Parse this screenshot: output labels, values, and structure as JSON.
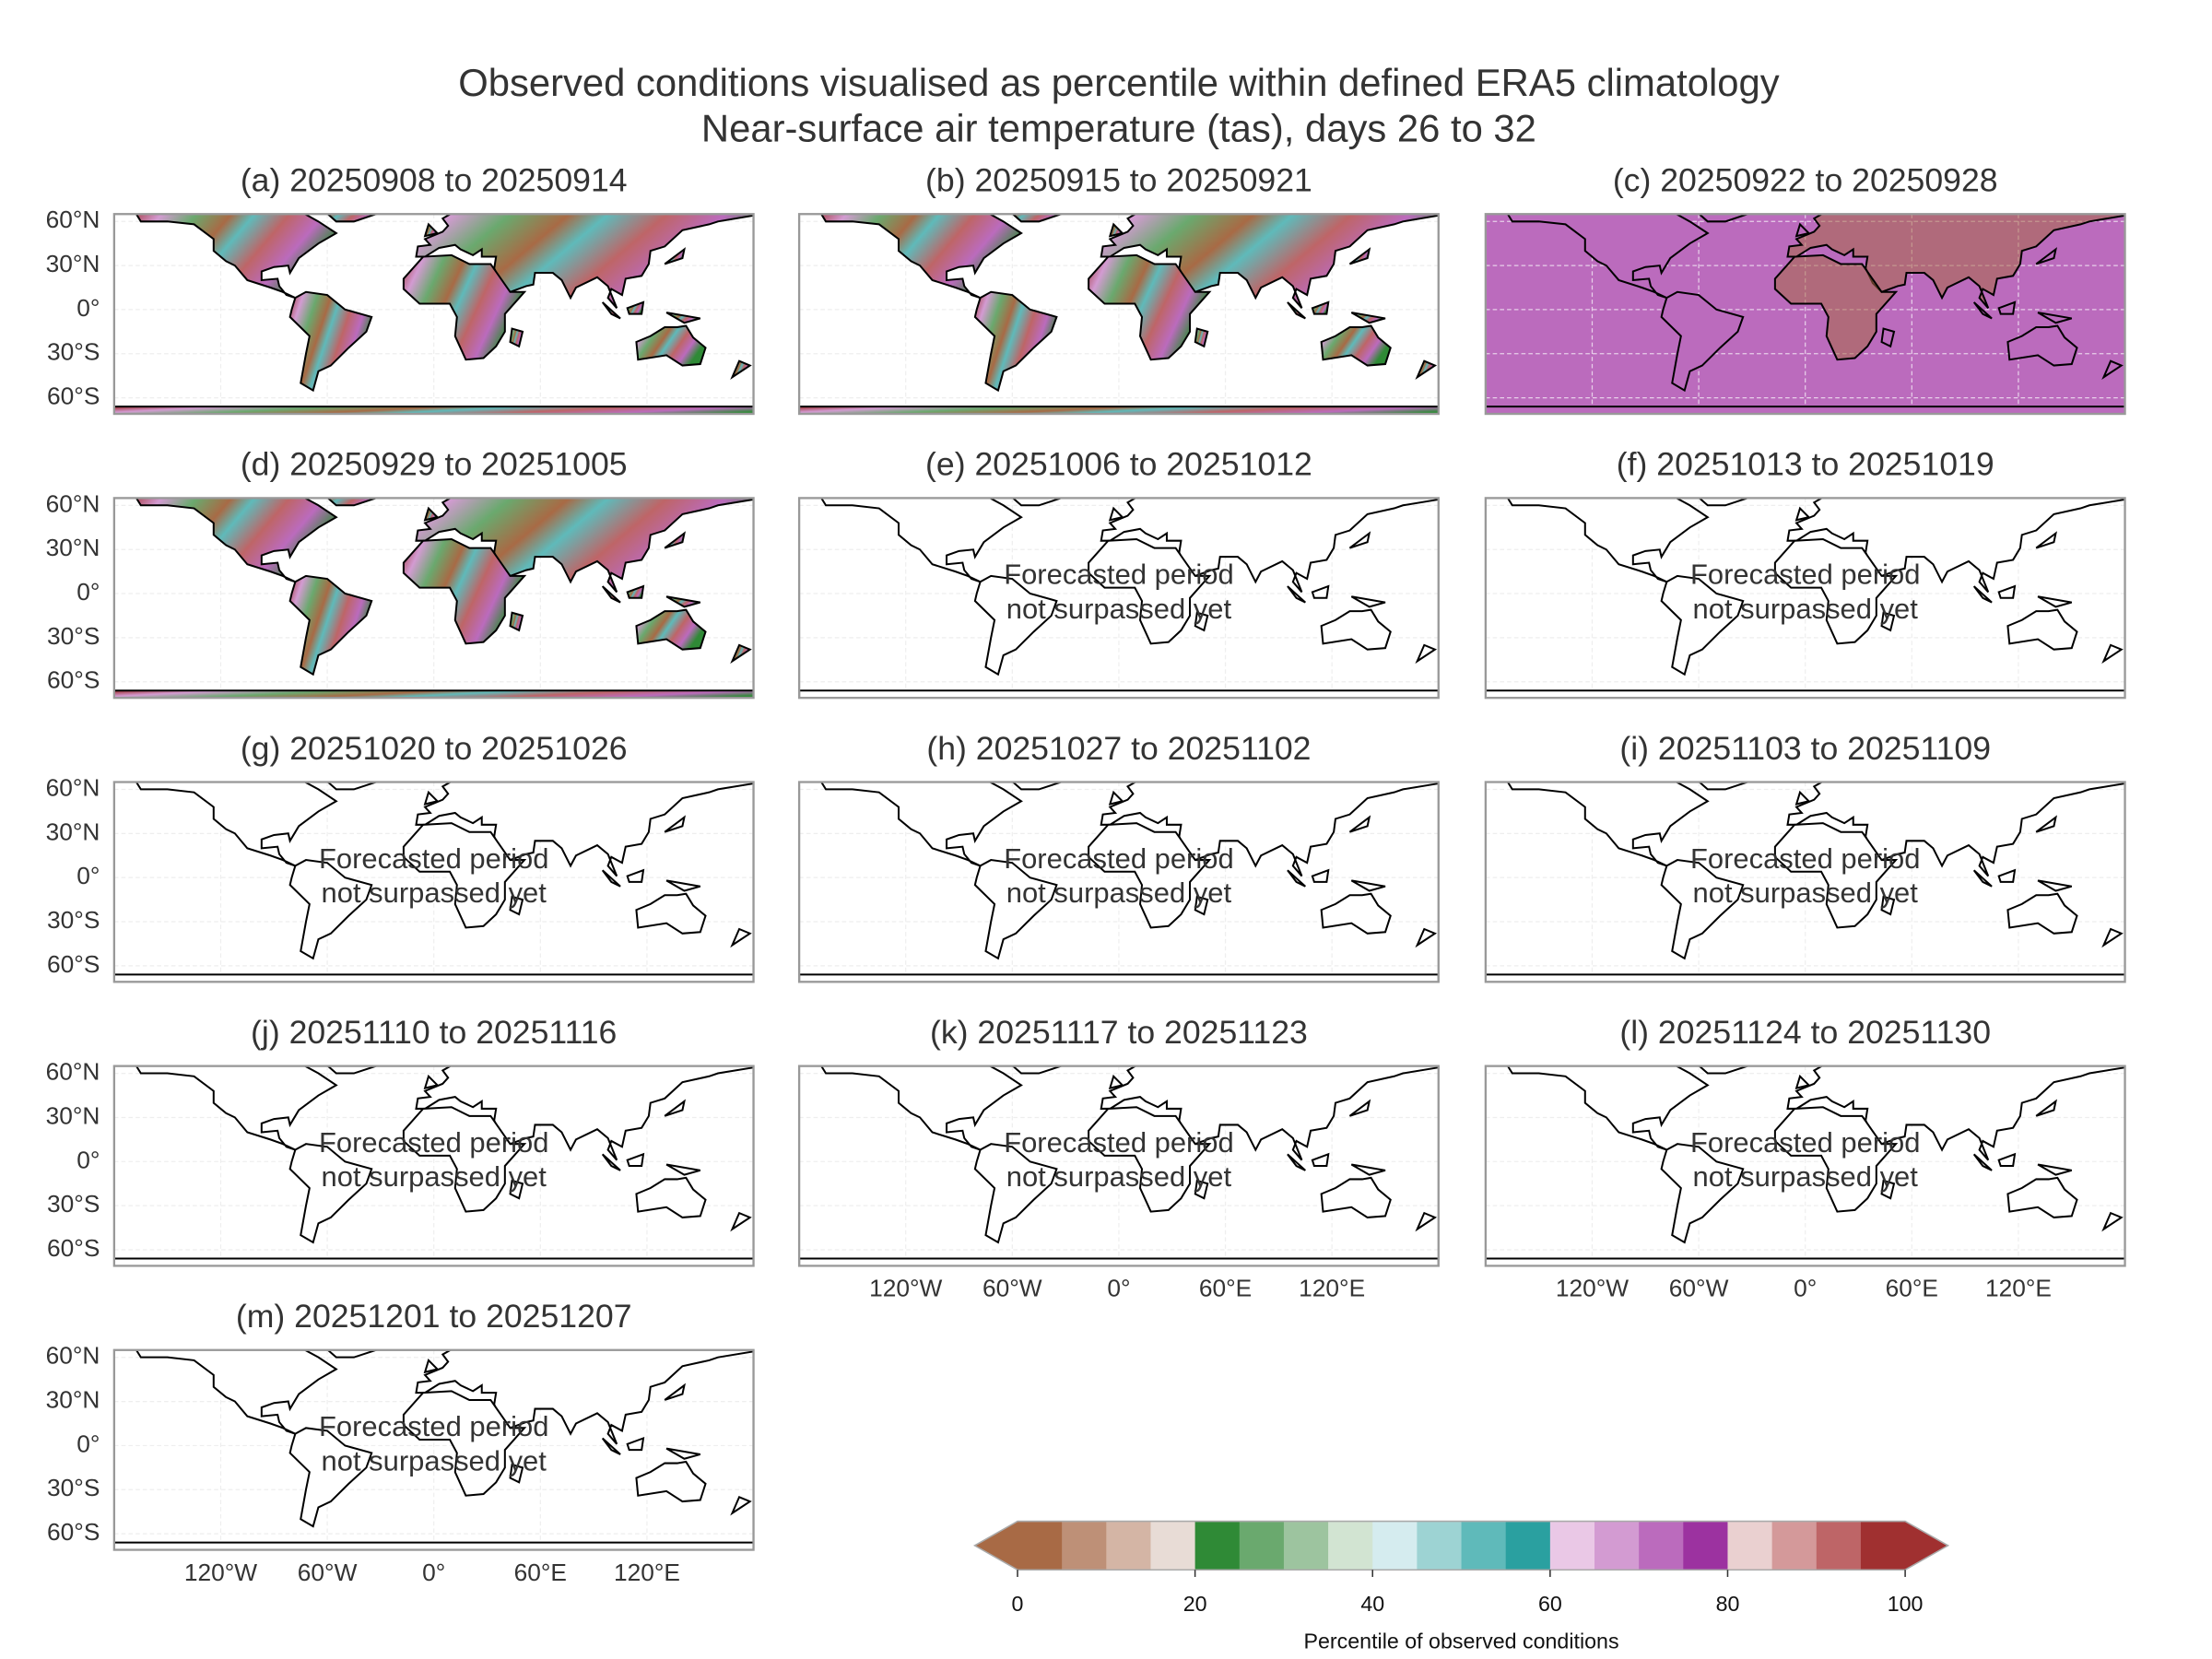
{
  "figure": {
    "title": [
      "Observed conditions visualised as percentile within defined ERA5 climatology",
      "Near-surface air temperature (tas), days 26 to 32"
    ],
    "lat_ticks": [
      {
        "value": 60,
        "label": "60°N"
      },
      {
        "value": 30,
        "label": "30°N"
      },
      {
        "value": 0,
        "label": "0°"
      },
      {
        "value": -30,
        "label": "30°S"
      },
      {
        "value": -60,
        "label": "60°S"
      }
    ],
    "lon_ticks": [
      {
        "value": -120,
        "label": "120°W"
      },
      {
        "value": -60,
        "label": "60°W"
      },
      {
        "value": 0,
        "label": "0°"
      },
      {
        "value": 60,
        "label": "60°E"
      },
      {
        "value": 120,
        "label": "120°E"
      }
    ],
    "panels": [
      {
        "title": "(a) 20250908 to 20250914"
      },
      {
        "title": "(b) 20250915 to 20250921"
      },
      {
        "title": "(c) 20250922 to 20250928"
      },
      {
        "title": "(d) 20250929 to 20251005"
      },
      {
        "title": "(e) 20251006 to 20251012",
        "note": [
          "Forecasted period",
          "not surpassed yet"
        ]
      },
      {
        "title": "(f) 20251013 to 20251019",
        "note": [
          "Forecasted period",
          "not surpassed yet"
        ]
      },
      {
        "title": "(g) 20251020 to 20251026",
        "note": [
          "Forecasted period",
          "not surpassed yet"
        ]
      },
      {
        "title": "(h) 20251027 to 20251102",
        "note": [
          "Forecasted period",
          "not surpassed yet"
        ]
      },
      {
        "title": "(i) 20251103 to 20251109",
        "note": [
          "Forecasted period",
          "not surpassed yet"
        ]
      },
      {
        "title": "(j) 20251110 to 20251116",
        "note": [
          "Forecasted period",
          "not surpassed yet"
        ]
      },
      {
        "title": "(k) 20251117 to 20251123",
        "note": [
          "Forecasted period",
          "not surpassed yet"
        ]
      },
      {
        "title": "(l) 20251124 to 20251130",
        "note": [
          "Forecasted period",
          "not surpassed yet"
        ]
      },
      {
        "title": "(m) 20251201 to 20251207",
        "note": [
          "Forecasted period",
          "not surpassed yet"
        ]
      }
    ],
    "colorbar": {
      "label": "Percentile of observed conditions",
      "lim": [
        0,
        100
      ],
      "ticks": [
        0,
        20,
        40,
        60,
        80,
        100
      ],
      "bounds": [
        0,
        5,
        10,
        15,
        20,
        25,
        30,
        35,
        40,
        45,
        50,
        55,
        60,
        65,
        70,
        75,
        80,
        85,
        90,
        95,
        100
      ],
      "colors": [
        "#a86a45",
        "#be9077",
        "#d4b5a5",
        "#e8dcd6",
        "#2f8a36",
        "#6aa96e",
        "#9dc49f",
        "#d2e4d2",
        "#d5ecef",
        "#9dd3d3",
        "#5fbaba",
        "#2aa0a0",
        "#eac8e6",
        "#d39bd2",
        "#bb6bbd",
        "#9c32a0",
        "#ead0d0",
        "#d4999a",
        "#be6567",
        "#a03030"
      ],
      "extend": "both"
    }
  }
}
